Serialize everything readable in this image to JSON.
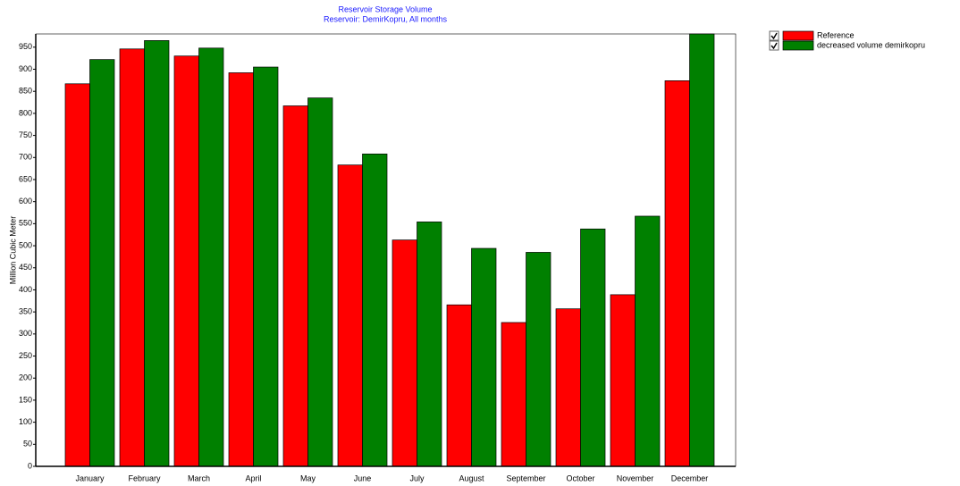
{
  "chart_data": {
    "type": "bar",
    "title": "Reservoir Storage Volume",
    "subtitle": "Reservoir: DemirKopru,  All months",
    "y_label": "Million Cubic Meter",
    "categories": [
      "January",
      "February",
      "March",
      "April",
      "May",
      "June",
      "July",
      "August",
      "September",
      "October",
      "November",
      "December"
    ],
    "series": [
      {
        "name": "Reference",
        "color": "#ff0000",
        "values": [
          867,
          946,
          930,
          892,
          817,
          683,
          513,
          366,
          326,
          357,
          389,
          874
        ]
      },
      {
        "name": "decreased volume demirkopru",
        "color": "#008000",
        "values": [
          922,
          965,
          948,
          905,
          835,
          708,
          554,
          494,
          485,
          538,
          567,
          980
        ]
      }
    ],
    "ylim": [
      0,
      980
    ],
    "yticks": [
      0,
      50,
      100,
      150,
      200,
      250,
      300,
      350,
      400,
      450,
      500,
      550,
      600,
      650,
      700,
      750,
      800,
      850,
      900,
      950
    ],
    "legend": "top-right"
  }
}
